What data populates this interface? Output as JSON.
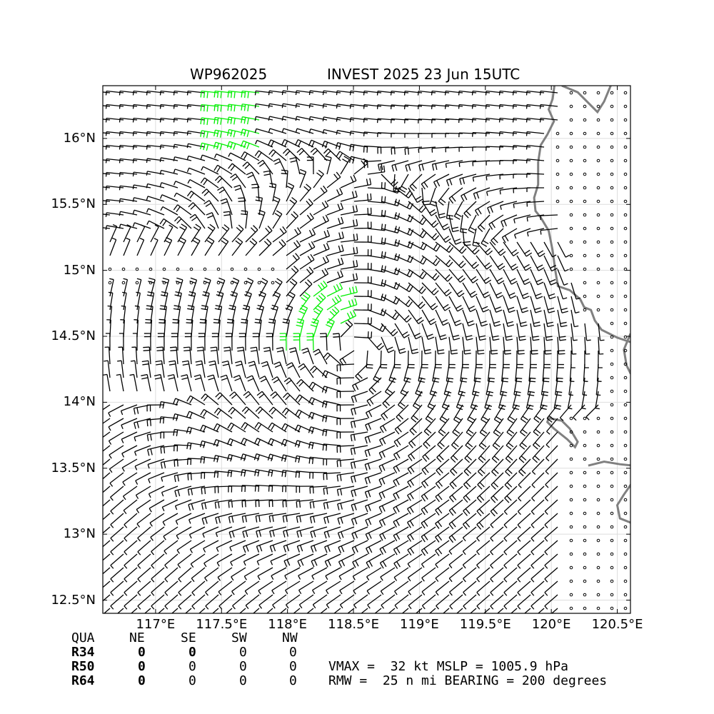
{
  "title": {
    "left": "WP962025",
    "right": "INVEST 2025 23 Jun 15UTC"
  },
  "map": {
    "lon_range": [
      116.6,
      120.6
    ],
    "lat_range": [
      12.4,
      16.4
    ],
    "lat_ticks": [
      {
        "value": 16.0,
        "label": "16°N"
      },
      {
        "value": 15.5,
        "label": "15.5°N"
      },
      {
        "value": 15.0,
        "label": "15°N"
      },
      {
        "value": 14.5,
        "label": "14.5°N"
      },
      {
        "value": 14.0,
        "label": "14°N"
      },
      {
        "value": 13.5,
        "label": "13.5°N"
      },
      {
        "value": 13.0,
        "label": "13°N"
      },
      {
        "value": 12.5,
        "label": "12.5°N"
      }
    ],
    "lon_ticks": [
      {
        "value": 117.0,
        "label": "117°E"
      },
      {
        "value": 117.5,
        "label": "117.5°E"
      },
      {
        "value": 118.0,
        "label": "118°E"
      },
      {
        "value": 118.5,
        "label": "118.5°E"
      },
      {
        "value": 119.0,
        "label": "119°E"
      },
      {
        "value": 119.5,
        "label": "119.5°E"
      },
      {
        "value": 120.0,
        "label": "120°E"
      },
      {
        "value": 120.5,
        "label": "120.5°E"
      }
    ],
    "storm_center": {
      "lon": 118.5,
      "lat": 14.4
    },
    "coastline_color": "#808080",
    "barb_color": "#000000",
    "strong_barb_color": "#00ee00",
    "grid_color": "#dddddd"
  },
  "table": {
    "header": [
      "QUA",
      "NE",
      "SE",
      "SW",
      "NW"
    ],
    "rows": [
      {
        "label": "R34",
        "values": [
          "0",
          "0",
          "0",
          "0"
        ]
      },
      {
        "label": "R50",
        "values": [
          "0",
          "0",
          "0",
          "0"
        ]
      },
      {
        "label": "R64",
        "values": [
          "0",
          "0",
          "0",
          "0"
        ]
      }
    ]
  },
  "stats": {
    "line1": "VMAX =  32 kt MSLP = 1005.9 hPa",
    "line2": "RMW =  25 n mi BEARING = 200 degrees"
  }
}
